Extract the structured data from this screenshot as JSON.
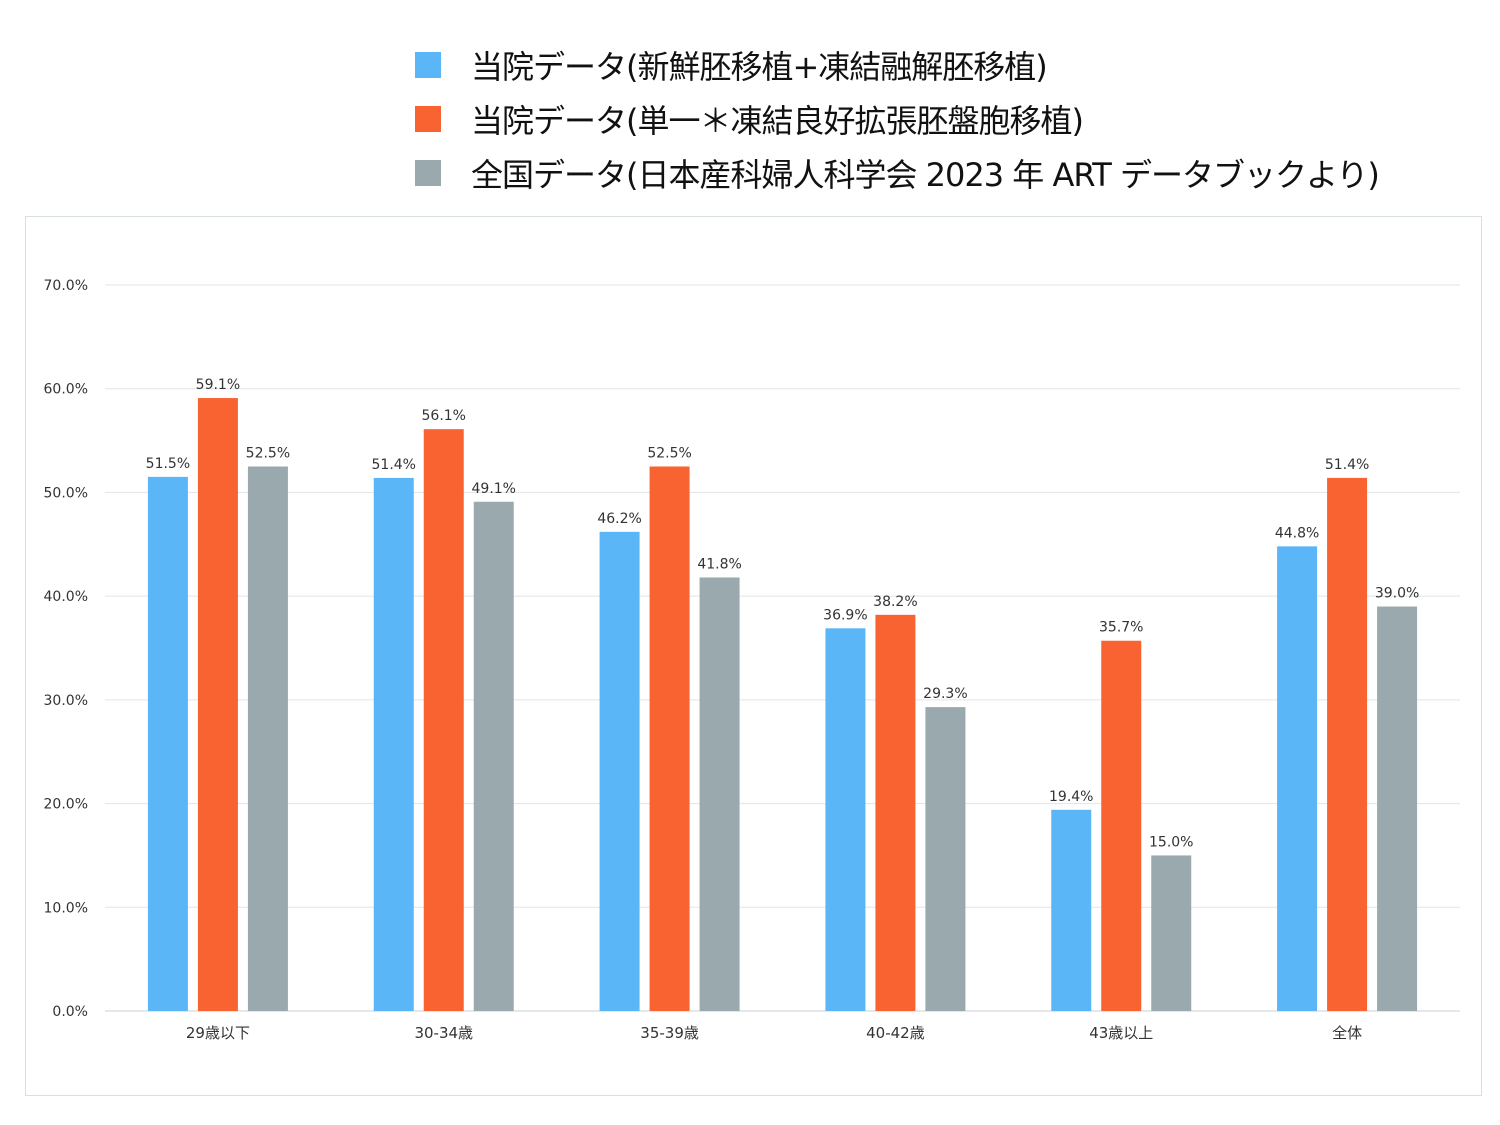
{
  "chart_data": {
    "type": "bar",
    "title": "",
    "xlabel": "",
    "ylabel": "",
    "ylim": [
      0,
      70
    ],
    "yticks": [
      "0.0%",
      "10.0%",
      "20.0%",
      "30.0%",
      "40.0%",
      "50.0%",
      "60.0%",
      "70.0%"
    ],
    "grid": true,
    "legend_position": "top",
    "categories": [
      "29歳以下",
      "30-34歳",
      "35-39歳",
      "40-42歳",
      "43歳以上",
      "全体"
    ],
    "series": [
      {
        "name": "当院データ(新鮮胚移植+凍結融解胚移植)",
        "color": "#5bb6f8",
        "values": [
          51.5,
          51.4,
          46.2,
          36.9,
          19.4,
          44.8
        ],
        "labels": [
          "51.5%",
          "51.4%",
          "46.2%",
          "36.9%",
          "19.4%",
          "44.8%"
        ]
      },
      {
        "name": "当院データ(単一＊凍結良好拡張胚盤胞移植)",
        "color": "#f96332",
        "values": [
          59.1,
          56.1,
          52.5,
          38.2,
          35.7,
          51.4
        ],
        "labels": [
          "59.1%",
          "56.1%",
          "52.5%",
          "38.2%",
          "35.7%",
          "51.4%"
        ]
      },
      {
        "name": "全国データ(日本産科婦人科学会 2023 年 ART データブックより)",
        "color": "#9aa9ad",
        "values": [
          52.5,
          49.1,
          41.8,
          29.3,
          15.0,
          39.0
        ],
        "labels": [
          "52.5%",
          "49.1%",
          "41.8%",
          "29.3%",
          "15.0%",
          "39.0%"
        ]
      }
    ]
  }
}
